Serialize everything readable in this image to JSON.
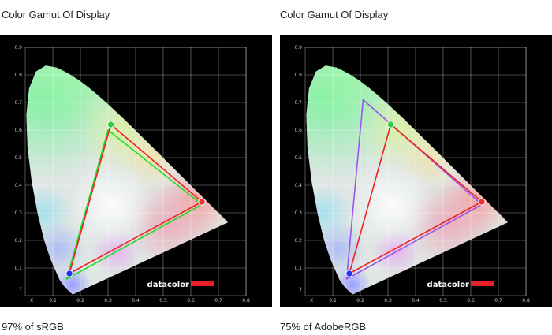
{
  "chart_data": [
    {
      "type": "scatter",
      "chart_kind": "CIE 1931 xy chromaticity diagram",
      "title": "Color Gamut Of Display",
      "caption": "97% of sRGB",
      "xlabel": "X",
      "ylabel": "Y",
      "xlim": [
        0,
        0.8
      ],
      "ylim": [
        0,
        0.9
      ],
      "xticks": [
        "0.1",
        "0.2",
        "0.3",
        "0.4",
        "0.5",
        "0.6",
        "0.7",
        "0.8"
      ],
      "yticks": [
        "0.1",
        "0.2",
        "0.3",
        "0.4",
        "0.5",
        "0.6",
        "0.7",
        "0.8",
        "0.9"
      ],
      "grid": true,
      "watermark": "datacolor",
      "colors": {
        "reference": "#22dd22",
        "measured": "#ee2222"
      },
      "series": [
        {
          "x": [
            0.64,
            0.3,
            0.15
          ],
          "y": [
            0.33,
            0.6,
            0.06
          ],
          "color": "#22dd22"
        },
        {
          "x": [
            0.64,
            0.31,
            0.16
          ],
          "y": [
            0.34,
            0.62,
            0.08
          ],
          "color": "#ee2222"
        }
      ]
    },
    {
      "type": "scatter",
      "chart_kind": "CIE 1931 xy chromaticity diagram",
      "title": "Color Gamut Of Display",
      "caption": "75% of AdobeRGB",
      "xlabel": "X",
      "ylabel": "Y",
      "xlim": [
        0,
        0.8
      ],
      "ylim": [
        0,
        0.9
      ],
      "xticks": [
        "0.1",
        "0.2",
        "0.3",
        "0.4",
        "0.5",
        "0.6",
        "0.7",
        "0.8"
      ],
      "yticks": [
        "0.1",
        "0.2",
        "0.3",
        "0.4",
        "0.5",
        "0.6",
        "0.7",
        "0.8",
        "0.9"
      ],
      "grid": true,
      "watermark": "datacolor",
      "colors": {
        "reference": "#9955ee",
        "measured": "#ee2222"
      },
      "series": [
        {
          "x": [
            0.64,
            0.21,
            0.15
          ],
          "y": [
            0.33,
            0.71,
            0.06
          ],
          "color": "#9955ee"
        },
        {
          "x": [
            0.64,
            0.31,
            0.16
          ],
          "y": [
            0.34,
            0.62,
            0.08
          ],
          "color": "#ee2222"
        }
      ]
    }
  ]
}
